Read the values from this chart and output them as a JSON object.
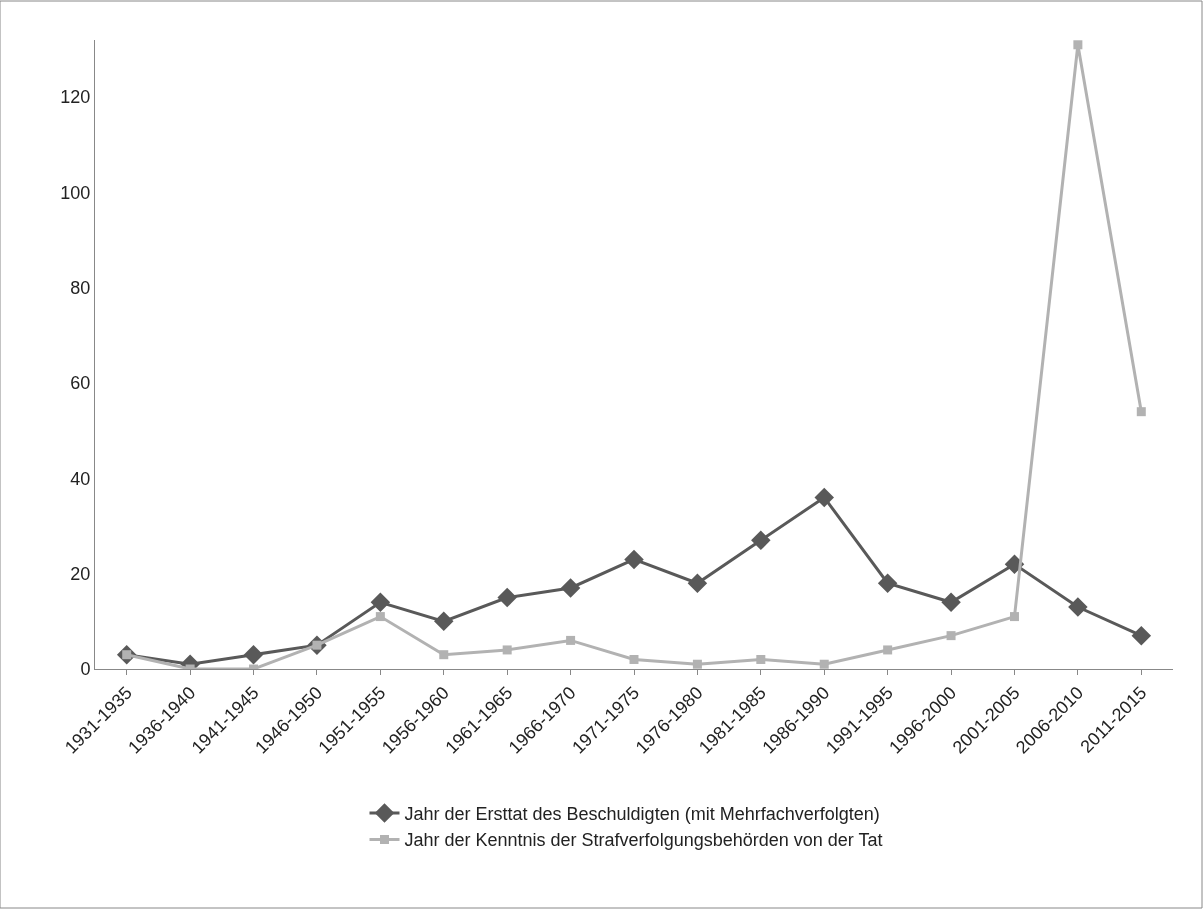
{
  "chart_data": {
    "type": "line",
    "categories": [
      "1931-1935",
      "1936-1940",
      "1941-1945",
      "1946-1950",
      "1951-1955",
      "1956-1960",
      "1961-1965",
      "1966-1970",
      "1971-1975",
      "1976-1980",
      "1981-1985",
      "1986-1990",
      "1991-1995",
      "1996-2000",
      "2001-2005",
      "2006-2010",
      "2011-2015"
    ],
    "series": [
      {
        "name": "Jahr der Ersttat des Beschuldigten (mit Mehrfachverfolgten)",
        "color": "#595959",
        "marker": "diamond",
        "values": [
          3,
          1,
          3,
          5,
          14,
          10,
          15,
          17,
          23,
          18,
          27,
          36,
          18,
          14,
          22,
          13,
          7
        ]
      },
      {
        "name": "Jahr der Kenntnis der Strafverfolgungsbehörden von der Tat",
        "color": "#b2b2b2",
        "marker": "square",
        "values": [
          3,
          0,
          0,
          5,
          11,
          3,
          4,
          6,
          2,
          1,
          2,
          1,
          4,
          7,
          11,
          131,
          54
        ]
      }
    ],
    "ylim": [
      0,
      132
    ],
    "yticks": [
      0,
      20,
      40,
      60,
      80,
      100,
      120
    ],
    "grid": false,
    "legend": "bottom",
    "line_style": "solid"
  }
}
